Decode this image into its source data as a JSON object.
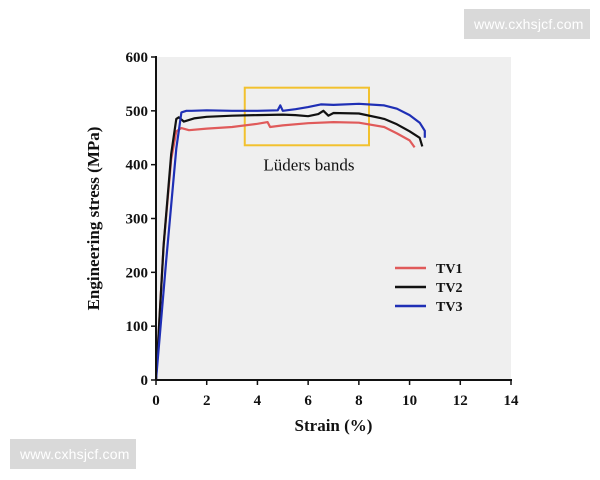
{
  "watermark": {
    "top_text": "www.cxhsjcf.com",
    "bottom_text": "www.cxhsjcf.com"
  },
  "chart_data": {
    "type": "line",
    "title": "",
    "xlabel": "Strain (%)",
    "ylabel": "Engineering stress (MPa)",
    "xlim": [
      0,
      14
    ],
    "ylim": [
      0,
      600
    ],
    "xticks": [
      0,
      2,
      4,
      6,
      8,
      10,
      12,
      14
    ],
    "yticks": [
      0,
      100,
      200,
      300,
      400,
      500,
      600
    ],
    "grid": false,
    "background": "#efefef",
    "legend_position": "right",
    "series": [
      {
        "name": "TV1",
        "color": "#e05a5a",
        "x": [
          0,
          0.3,
          0.6,
          0.8,
          1.0,
          1.3,
          2.0,
          3.0,
          4.0,
          4.4,
          4.5,
          5.0,
          6.0,
          7.0,
          8.0,
          9.0,
          9.5,
          10.0,
          10.2
        ],
        "y": [
          0,
          250,
          410,
          462,
          468,
          464,
          467,
          470,
          476,
          479,
          470,
          473,
          477,
          479,
          478,
          470,
          458,
          445,
          432
        ]
      },
      {
        "name": "TV2",
        "color": "#111111",
        "x": [
          0,
          0.3,
          0.6,
          0.8,
          0.9,
          1.1,
          1.5,
          2.0,
          3.0,
          4.0,
          5.0,
          5.5,
          6.0,
          6.4,
          6.6,
          6.8,
          7.0,
          8.0,
          9.0,
          9.5,
          10.0,
          10.4,
          10.5
        ],
        "y": [
          0,
          250,
          420,
          485,
          488,
          480,
          486,
          489,
          491,
          492,
          493,
          492,
          490,
          494,
          500,
          491,
          496,
          495,
          485,
          475,
          462,
          450,
          434
        ]
      },
      {
        "name": "TV3",
        "color": "#1f2fb5",
        "x": [
          0,
          0.4,
          0.8,
          1.0,
          1.2,
          1.4,
          2.0,
          3.0,
          4.0,
          4.8,
          4.9,
          5.0,
          5.5,
          6.0,
          6.5,
          7.0,
          8.0,
          9.0,
          9.5,
          10.0,
          10.4,
          10.6,
          10.6
        ],
        "y": [
          0,
          220,
          430,
          497,
          500,
          500,
          501,
          500,
          500,
          501,
          510,
          500,
          503,
          507,
          512,
          511,
          513,
          510,
          504,
          492,
          478,
          463,
          450
        ]
      }
    ],
    "annotations": [
      {
        "text": "Lüders bands",
        "box_x": [
          3.5,
          8.4
        ],
        "box_y": [
          436,
          543
        ],
        "box_color": "#f2c12e"
      }
    ]
  }
}
